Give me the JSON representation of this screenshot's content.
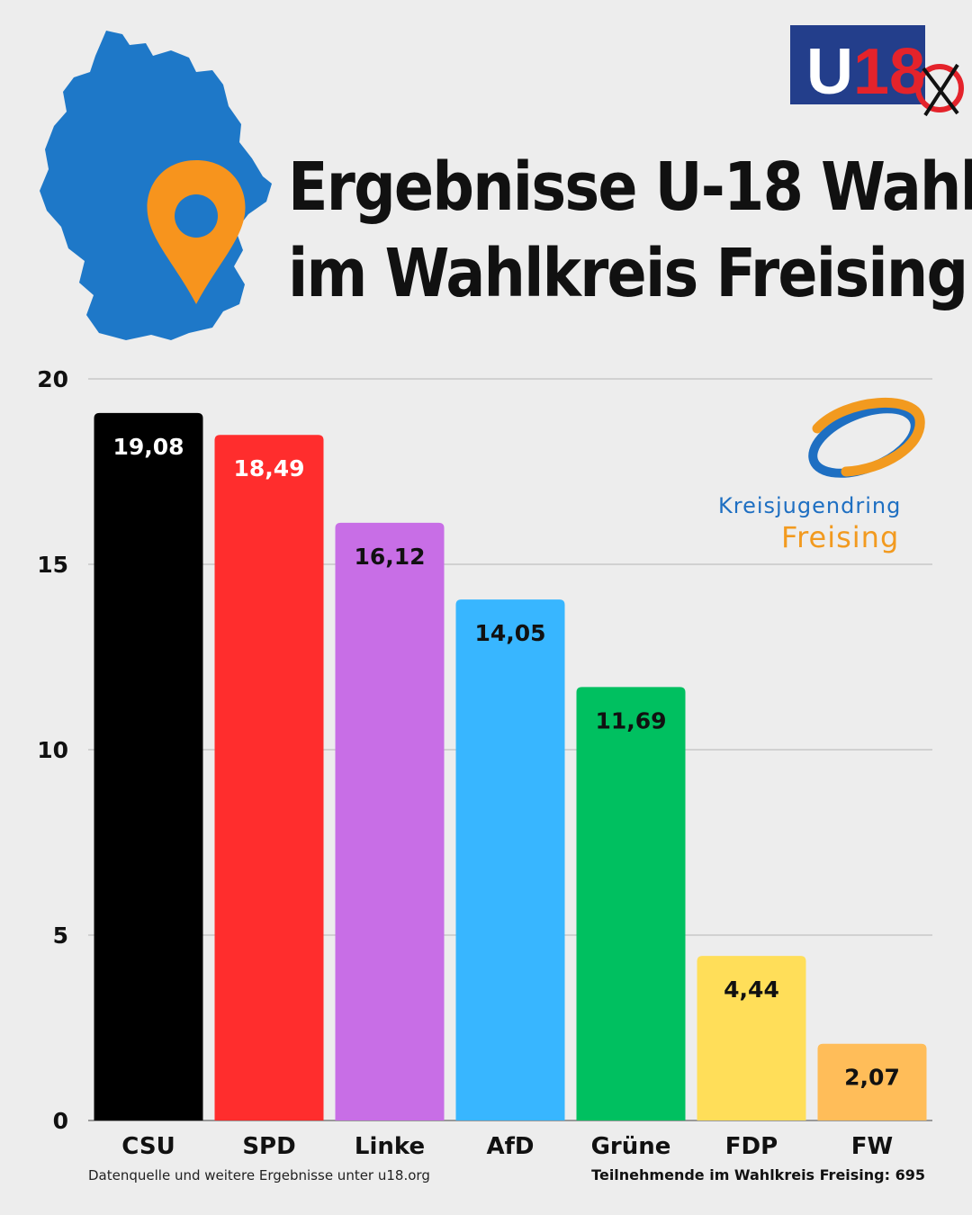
{
  "header": {
    "title_line1": "Ergebnisse U-18 Wahl",
    "title_line2": "im Wahlkreis Freising"
  },
  "logos": {
    "u18_text": "U18",
    "kjr_line1": "Kreisjugendring",
    "kjr_line2": "Freising"
  },
  "colors": {
    "background": "#ededed",
    "map_blue": "#1e78c8",
    "pin_orange": "#f7941d",
    "u18_blue": "#233e8b",
    "u18_red": "#e4232b"
  },
  "chart_data": {
    "type": "bar",
    "title": "",
    "xlabel": "",
    "ylabel": "",
    "ylim": [
      0,
      20
    ],
    "yticks": [
      0,
      5,
      10,
      15,
      20
    ],
    "grid": true,
    "categories": [
      "CSU",
      "SPD",
      "Linke",
      "AfD",
      "Grüne",
      "FDP",
      "FW"
    ],
    "values": [
      19.08,
      18.49,
      16.12,
      14.05,
      11.69,
      4.44,
      2.07
    ],
    "value_labels": [
      "19,08",
      "18,49",
      "16,12",
      "14,05",
      "11,69",
      "4,44",
      "2,07"
    ],
    "colors": [
      "#000000",
      "#ff2d2d",
      "#c86ee6",
      "#38b6ff",
      "#00c060",
      "#ffde59",
      "#ffbd59"
    ],
    "label_colors": [
      "#ffffff",
      "#ffffff",
      "#111111",
      "#111111",
      "#111111",
      "#111111",
      "#111111"
    ]
  },
  "footer": {
    "source": "Datenquelle und weitere Ergebnisse unter u18.org",
    "participants": "Teilnehmende im Wahlkreis Freising: 695"
  }
}
